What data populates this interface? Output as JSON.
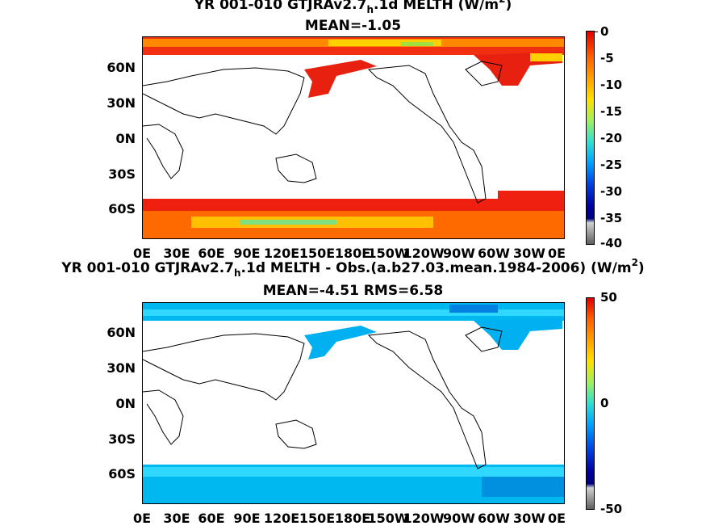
{
  "panels": [
    {
      "title_main": "YR 001-010 GTJRAv2.7",
      "title_sub": "h",
      "title_rest": ".1d  MELTH (W/m",
      "title_sup": "2",
      "title_end": ")",
      "stats": "MEAN=-1.05",
      "lat_labels": [
        "60N",
        "30N",
        "0N",
        "30S",
        "60S"
      ],
      "lon_labels": [
        "0E",
        "30E",
        "60E",
        "90E",
        "120E",
        "150E",
        "180E",
        "150W",
        "120W",
        "90W",
        "60W",
        "30W",
        "0E"
      ],
      "colorbar_labels": [
        "0",
        "-5",
        "-10",
        "-15",
        "-20",
        "-25",
        "-30",
        "-35",
        "-40"
      ]
    },
    {
      "title_main": "YR 001-010 GTJRAv2.7",
      "title_sub": "h",
      "title_rest": ".1d MELTH - Obs.(a.b27.03.mean.1984-2006) (W/m",
      "title_sup": "2",
      "title_end": ")",
      "stats": "MEAN=-4.51 RMS=6.58",
      "lat_labels": [
        "60N",
        "30N",
        "0N",
        "30S",
        "60S"
      ],
      "lon_labels": [
        "0E",
        "30E",
        "60E",
        "90E",
        "120E",
        "150E",
        "180E",
        "150W",
        "120W",
        "90W",
        "60W",
        "30W",
        "0E"
      ],
      "colorbar_labels": [
        "50",
        "0",
        "-50"
      ]
    }
  ],
  "colors": {
    "panel1_polar": "#f03010",
    "panel1_polar_alt": "#ffa000",
    "panel2_polar": "#00b8f0",
    "panel2_polar_alt": "#30d8ff"
  }
}
